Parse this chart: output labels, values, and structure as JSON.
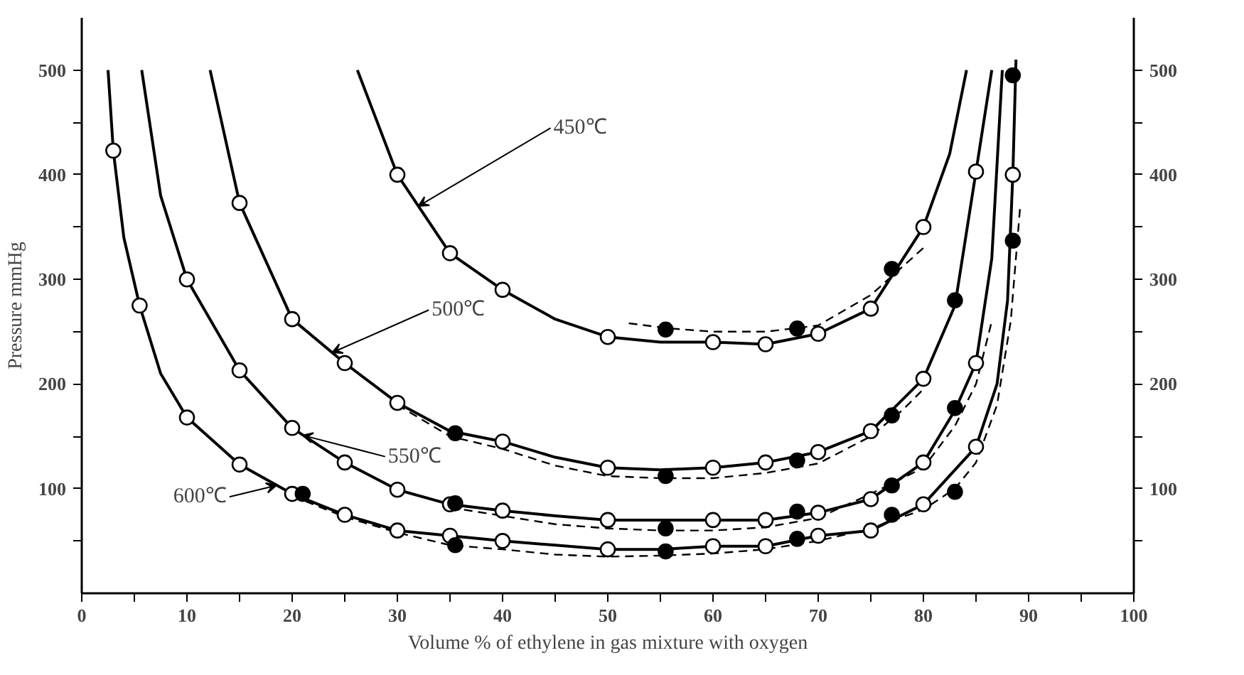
{
  "chart_data": {
    "type": "line",
    "xlabel": "Volume % of ethylene in gas mixture with oxygen",
    "ylabel": "Pressure mmHg",
    "xlim": [
      0,
      100
    ],
    "ylim": [
      0,
      550
    ],
    "y2lim": [
      0,
      550
    ],
    "xticks": [
      0,
      {
        "value": 5,
        "label": null
      },
      10,
      {
        "value": 15,
        "label": null
      },
      20,
      {
        "value": 25,
        "label": null
      },
      30,
      {
        "value": 35,
        "label": null
      },
      40,
      {
        "value": 45,
        "label": null
      },
      50,
      {
        "value": 55,
        "label": null
      },
      60,
      {
        "value": 65,
        "label": null
      },
      70,
      {
        "value": 75,
        "label": null
      },
      80,
      {
        "value": 85,
        "label": null
      },
      90,
      {
        "value": 95,
        "label": null
      },
      100
    ],
    "yticks": [
      {
        "value": 50,
        "label": null
      },
      100,
      {
        "value": 150,
        "label": null
      },
      200,
      {
        "value": 250,
        "label": null
      },
      300,
      {
        "value": 350,
        "label": null
      },
      400,
      {
        "value": 450,
        "label": null
      },
      500
    ],
    "y2ticks": [
      {
        "value": 50,
        "label": null
      },
      100,
      {
        "value": 150,
        "label": null
      },
      200,
      {
        "value": 250,
        "label": null
      },
      300,
      {
        "value": 350,
        "label": null
      },
      400,
      {
        "value": 450,
        "label": null
      },
      500
    ],
    "grid": false,
    "series": [
      {
        "type": "line",
        "line_style": "solid",
        "marker": "none",
        "color": "#000000",
        "x": [
          26.2,
          30,
          35,
          40,
          45,
          50,
          55,
          60,
          65,
          70,
          75,
          80,
          82.5,
          84.1
        ],
        "values": [
          500,
          400,
          325,
          290,
          262,
          245,
          240,
          240,
          238,
          248,
          272,
          350,
          420,
          500
        ]
      },
      {
        "type": "line",
        "line_style": "solid",
        "marker": "none",
        "color": "#000000",
        "x": [
          12.2,
          15,
          20,
          25,
          30,
          35,
          40,
          45,
          50,
          55,
          60,
          65,
          70,
          75,
          80,
          83,
          85,
          86.5
        ],
        "values": [
          500,
          373,
          262,
          220,
          182,
          155,
          145,
          130,
          120,
          118,
          120,
          125,
          135,
          155,
          205,
          275,
          403,
          500
        ]
      },
      {
        "type": "line",
        "line_style": "solid",
        "marker": "none",
        "color": "#000000",
        "x": [
          5.7,
          7.5,
          10,
          15,
          20,
          25,
          30,
          35,
          40,
          45,
          50,
          55,
          60,
          65,
          70,
          75,
          80,
          83,
          85,
          86.5,
          87.5
        ],
        "values": [
          500,
          380,
          300,
          213,
          158,
          125,
          99,
          85,
          79,
          74,
          70,
          70,
          70,
          70,
          77,
          90,
          125,
          175,
          220,
          320,
          500
        ]
      },
      {
        "type": "line",
        "line_style": "solid",
        "marker": "none",
        "color": "#000000",
        "x": [
          2.5,
          3,
          4,
          5.5,
          7.5,
          10,
          15,
          20,
          25,
          30,
          35,
          40,
          45,
          50,
          55,
          60,
          65,
          70,
          75,
          80,
          85,
          87,
          88,
          88.5,
          88.8
        ],
        "values": [
          500,
          423,
          340,
          275,
          210,
          168,
          123,
          95,
          75,
          60,
          55,
          50,
          46,
          42,
          42,
          45,
          45,
          55,
          60,
          85,
          140,
          200,
          280,
          400,
          510
        ]
      },
      {
        "type": "line",
        "line_style": "dashed",
        "marker": "none",
        "color": "#000000",
        "x": [
          52,
          56,
          60,
          65,
          70,
          75,
          78,
          80
        ],
        "values": [
          258,
          253,
          250,
          250,
          256,
          285,
          312,
          330
        ]
      },
      {
        "type": "line",
        "line_style": "dashed",
        "marker": "none",
        "color": "#000000",
        "x": [
          30,
          35,
          40,
          45,
          50,
          55,
          60,
          65,
          70,
          75,
          78,
          80
        ],
        "values": [
          180,
          150,
          138,
          122,
          112,
          110,
          110,
          115,
          124,
          150,
          175,
          195
        ]
      },
      {
        "type": "line",
        "line_style": "dashed",
        "marker": "none",
        "color": "#000000",
        "x": [
          35,
          40,
          45,
          50,
          55,
          60,
          65,
          70,
          75,
          80,
          83,
          85,
          86.5
        ],
        "values": [
          82,
          74,
          66,
          62,
          60,
          60,
          63,
          72,
          95,
          120,
          160,
          200,
          260
        ]
      },
      {
        "type": "line",
        "line_style": "dashed",
        "marker": "none",
        "color": "#000000",
        "x": [
          20,
          25,
          30,
          35,
          40,
          45,
          50,
          55,
          60,
          65,
          70,
          75,
          80,
          83,
          85,
          87,
          88.3,
          89.2
        ],
        "values": [
          93,
          73,
          58,
          46,
          42,
          37,
          35,
          36,
          38,
          42,
          50,
          62,
          80,
          100,
          125,
          180,
          260,
          370
        ]
      },
      {
        "type": "scatter",
        "marker": "circle",
        "color": "#ffffff",
        "x": [
          30,
          35,
          40,
          50,
          60,
          65,
          70,
          75,
          80,
          15,
          20,
          25,
          30,
          40,
          50,
          60,
          65,
          70,
          75,
          80,
          85,
          10,
          15,
          20,
          25,
          30,
          35,
          40,
          50,
          60,
          65,
          70,
          75,
          80,
          85,
          3,
          5.5,
          10,
          15,
          20,
          25,
          30,
          35,
          40,
          50,
          60,
          65,
          70,
          75,
          80,
          85,
          88.5
        ],
        "values": [
          400,
          325,
          290,
          245,
          240,
          238,
          248,
          272,
          350,
          373,
          262,
          220,
          182,
          145,
          120,
          120,
          125,
          135,
          155,
          205,
          403,
          300,
          213,
          158,
          125,
          99,
          85,
          79,
          70,
          70,
          70,
          77,
          90,
          125,
          220,
          423,
          275,
          168,
          123,
          95,
          75,
          60,
          55,
          50,
          42,
          45,
          45,
          55,
          60,
          85,
          140,
          400
        ]
      },
      {
        "type": "scatter",
        "marker": "circle",
        "color": "#000000",
        "x": [
          55.5,
          68,
          77,
          35.5,
          55.5,
          68,
          77,
          83,
          35.5,
          55.5,
          68,
          77,
          83,
          21,
          35.5,
          55.5,
          68,
          77,
          83,
          88.5,
          88.5
        ],
        "values": [
          252,
          253,
          310,
          153,
          112,
          127,
          170,
          280,
          86,
          62,
          78,
          103,
          177,
          95,
          46,
          40,
          52,
          75,
          97,
          495,
          337
        ]
      }
    ],
    "annotations": [
      {
        "text": "450℃",
        "x": 32,
        "y": 370
      },
      {
        "text": "500℃",
        "x": 23.8,
        "y": 230
      },
      {
        "text": "550℃",
        "x": 21,
        "y": 151
      },
      {
        "text": "600℃",
        "x": 18.5,
        "y": 103
      }
    ]
  }
}
